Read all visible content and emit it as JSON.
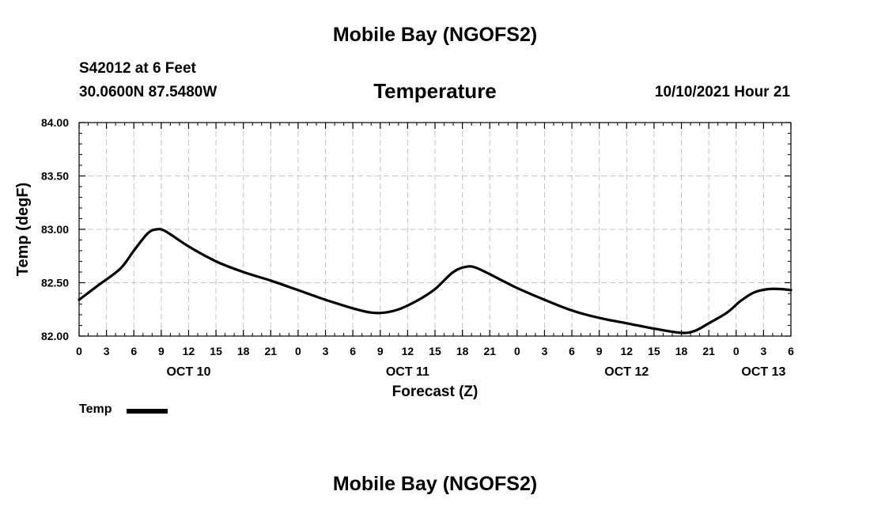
{
  "header": {
    "title": "Mobile Bay (NGOFS2)",
    "station": "S42012 at 6 Feet",
    "coords": "30.0600N  87.5480W",
    "chart_title": "Temperature",
    "datetime": "10/10/2021 Hour 21",
    "footer_title": "Mobile Bay (NGOFS2)"
  },
  "legend": {
    "label": "Temp"
  },
  "chart_data": {
    "type": "line",
    "title": "Temperature",
    "xlabel": "Forecast (Z)",
    "ylabel": "Temp (degF)",
    "xlim": [
      0,
      78
    ],
    "ylim": [
      82.0,
      84.0
    ],
    "y_ticks": [
      82.0,
      82.5,
      83.0,
      83.5,
      84.0
    ],
    "y_tick_labels": [
      "82.00",
      "82.50",
      "83.00",
      "83.50",
      "84.00"
    ],
    "x_ticks": [
      0,
      3,
      6,
      9,
      12,
      15,
      18,
      21,
      24,
      27,
      30,
      33,
      36,
      39,
      42,
      45,
      48,
      51,
      54,
      57,
      60,
      63,
      66,
      69,
      72,
      75,
      78
    ],
    "x_tick_labels": [
      "0",
      "3",
      "6",
      "9",
      "12",
      "15",
      "18",
      "21",
      "0",
      "3",
      "6",
      "9",
      "12",
      "15",
      "18",
      "21",
      "0",
      "3",
      "6",
      "9",
      "12",
      "15",
      "18",
      "21",
      "0",
      "3",
      "6"
    ],
    "date_labels": [
      {
        "x": 12,
        "label": "OCT 10"
      },
      {
        "x": 36,
        "label": "OCT 11"
      },
      {
        "x": 60,
        "label": "OCT 12"
      },
      {
        "x": 75,
        "label": "OCT 13"
      }
    ],
    "grid": true,
    "series": [
      {
        "name": "Temp",
        "color": "#000000",
        "x": [
          0,
          2,
          4.5,
          6,
          7.5,
          8.5,
          9.5,
          12,
          15,
          18,
          21,
          24,
          27,
          30,
          32,
          33.5,
          35,
          37,
          39,
          41,
          42.5,
          43.5,
          45,
          48,
          51,
          54,
          57,
          60,
          63,
          66,
          67.5,
          69,
          71,
          72.5,
          74,
          75.5,
          77,
          78
        ],
        "values": [
          82.34,
          82.47,
          82.63,
          82.8,
          82.96,
          83.0,
          82.98,
          82.84,
          82.7,
          82.6,
          82.52,
          82.43,
          82.34,
          82.26,
          82.22,
          82.22,
          82.25,
          82.33,
          82.44,
          82.6,
          82.65,
          82.64,
          82.58,
          82.45,
          82.34,
          82.24,
          82.17,
          82.12,
          82.07,
          82.03,
          82.05,
          82.12,
          82.22,
          82.33,
          82.41,
          82.44,
          82.44,
          82.43
        ]
      }
    ]
  }
}
